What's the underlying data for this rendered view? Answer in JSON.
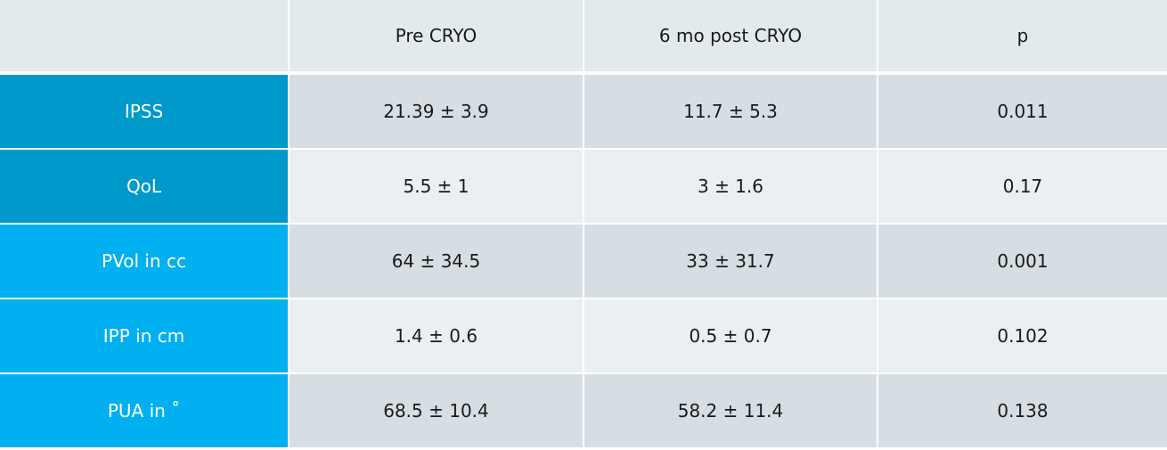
{
  "table": {
    "headers": [
      "",
      "Pre CRYO",
      "6 mo post CRYO",
      "p"
    ],
    "rows": [
      {
        "label": "IPSS",
        "pre": "21.39 ± 3.9",
        "post": "11.7 ± 5.3",
        "p": "0.011"
      },
      {
        "label": "QoL",
        "pre": "5.5 ± 1",
        "post": "3 ± 1.6",
        "p": "0.17"
      },
      {
        "label": "PVol in cc",
        "pre": "64 ± 34.5",
        "post": "33 ± 31.7",
        "p": "0.001"
      },
      {
        "label": "IPP in cm",
        "pre": "1.4 ± 0.6",
        "post": "0.5 ± 0.7",
        "p": "0.102"
      },
      {
        "label": "PUA in ˚",
        "pre": "68.5 ± 10.4",
        "post": "58.2 ± 11.4",
        "p": "0.138"
      }
    ]
  },
  "colors": {
    "label_dark": "#0099cc",
    "label_light": "#00b0f0",
    "header": "#e2eaec",
    "band_dark": "#d6dee3",
    "band_light": "#e9eff2"
  }
}
